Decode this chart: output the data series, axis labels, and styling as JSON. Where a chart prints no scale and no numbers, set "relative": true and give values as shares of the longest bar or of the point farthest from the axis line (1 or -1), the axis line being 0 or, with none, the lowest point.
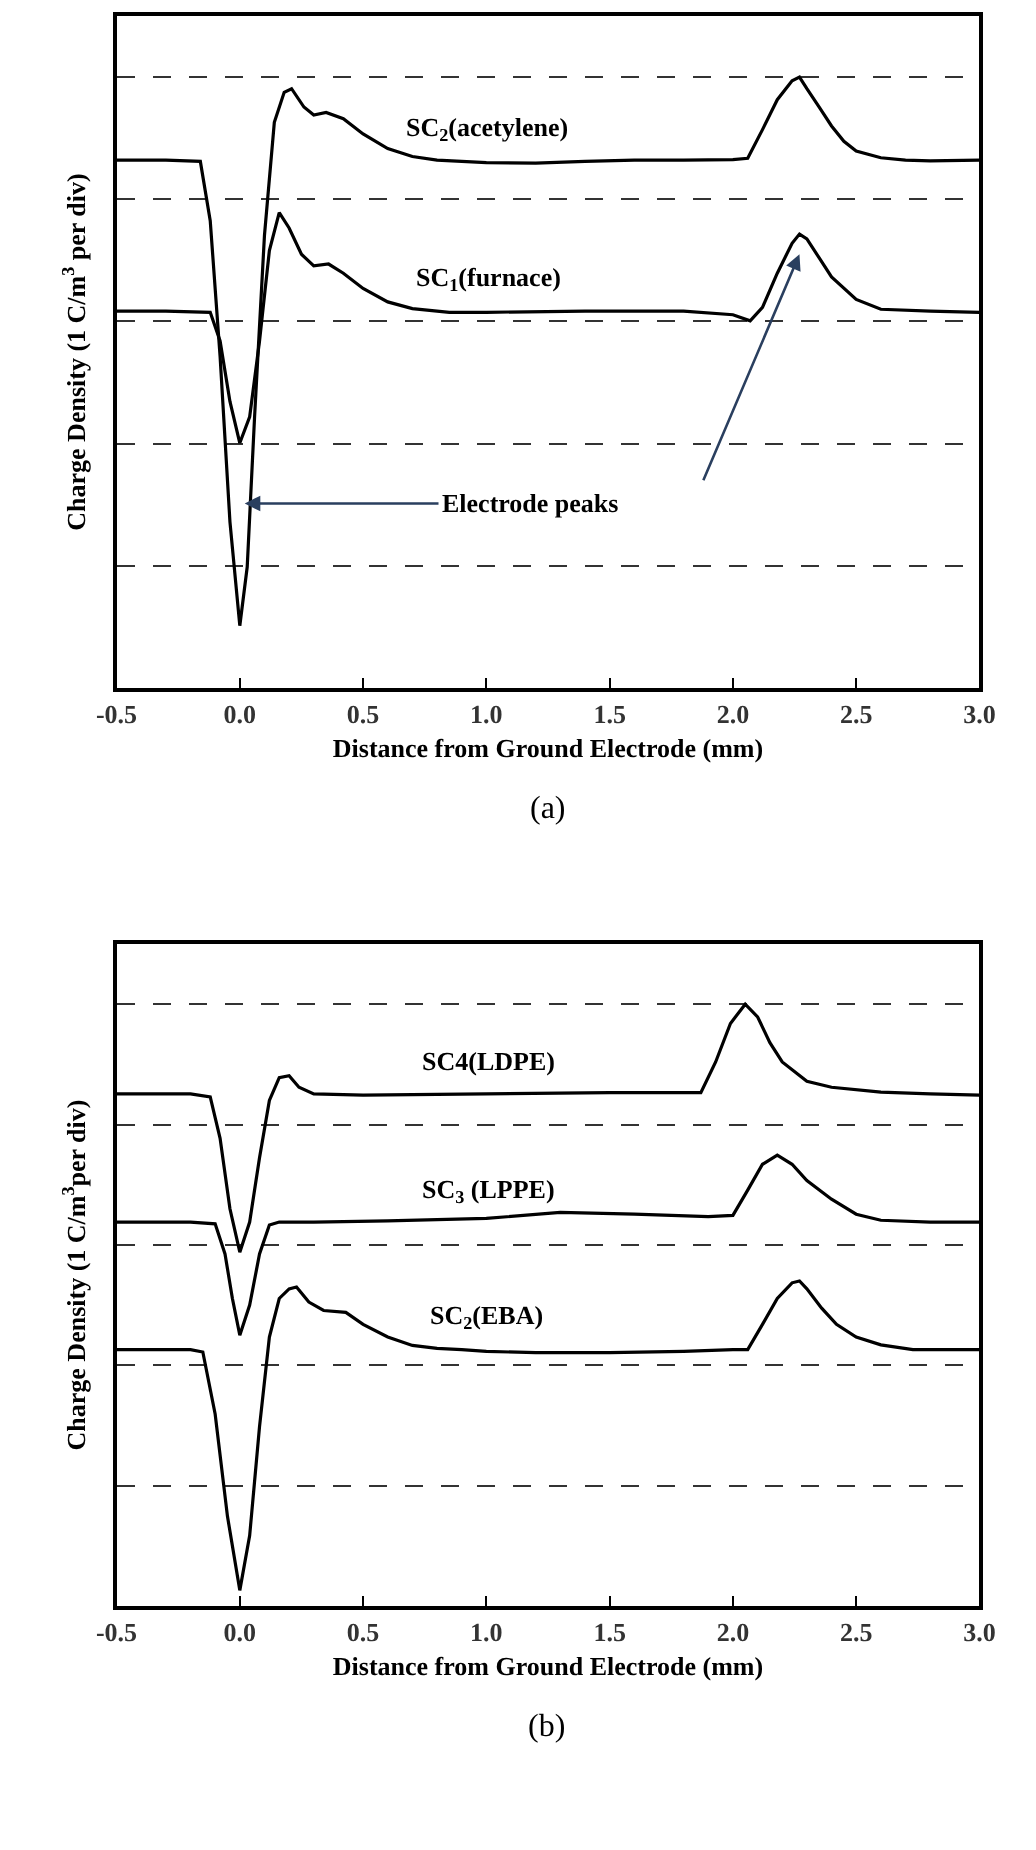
{
  "chart_data": [
    {
      "type": "line",
      "relative": true,
      "xlabel": "Distance from Ground Electrode (mm)",
      "ylabel": "Charge Density (1 C/m$^{3}$ per div)",
      "xlim": [
        -0.5,
        3.0
      ],
      "xticks": [
        {
          "value": -0.5,
          "label": "-0.5"
        },
        {
          "value": 0,
          "label": "0.0"
        },
        {
          "value": 0.5,
          "label": "0.5"
        },
        {
          "value": 1,
          "label": "1.0"
        },
        {
          "value": 1.5,
          "label": "1.5"
        },
        {
          "value": 2,
          "label": "2.0"
        },
        {
          "value": 2.5,
          "label": "2.5"
        },
        {
          "value": 3,
          "label": "3.0"
        }
      ],
      "tick_labels": "x",
      "grid": "y",
      "annotations": [
        {
          "text": "Electrode peaks",
          "x": 0.02,
          "y": 0.302
        },
        "(a)"
      ],
      "series": [
        {
          "name": "SC$_{2}$(acetylene)",
          "color": "#000000",
          "x": [
            -0.5,
            -0.3,
            -0.16,
            -0.12,
            -0.08,
            -0.04,
            0.0,
            0.03,
            0.06,
            0.1,
            0.14,
            0.18,
            0.21,
            0.26,
            0.3,
            0.35,
            0.42,
            0.5,
            0.6,
            0.7,
            0.8,
            0.9,
            1.0,
            1.2,
            1.4,
            1.6,
            1.8,
            2.0,
            2.06,
            2.12,
            2.18,
            2.24,
            2.27,
            2.3,
            2.35,
            2.4,
            2.45,
            2.5,
            2.6,
            2.7,
            2.8,
            3.0
          ],
          "values": [
            0.864,
            0.864,
            0.862,
            0.765,
            0.543,
            0.272,
            0.102,
            0.198,
            0.444,
            0.741,
            0.926,
            0.975,
            0.981,
            0.951,
            0.938,
            0.942,
            0.932,
            0.907,
            0.883,
            0.87,
            0.864,
            0.862,
            0.86,
            0.859,
            0.862,
            0.864,
            0.864,
            0.865,
            0.867,
            0.914,
            0.963,
            0.994,
            1,
            0.981,
            0.951,
            0.92,
            0.895,
            0.879,
            0.868,
            0.864,
            0.863,
            0.864
          ]
        },
        {
          "name": "SC$_{1}$(furnace)",
          "color": "#000000",
          "x": [
            -0.5,
            -0.3,
            -0.12,
            -0.08,
            -0.04,
            0.0,
            0.04,
            0.08,
            0.12,
            0.16,
            0.2,
            0.25,
            0.3,
            0.36,
            0.42,
            0.5,
            0.6,
            0.7,
            0.85,
            1.0,
            1.4,
            1.8,
            2.0,
            2.07,
            2.12,
            2.18,
            2.24,
            2.27,
            2.3,
            2.35,
            2.4,
            2.5,
            2.6,
            2.8,
            3.0
          ],
          "values": [
            0.617,
            0.617,
            0.615,
            0.568,
            0.469,
            0.401,
            0.444,
            0.568,
            0.716,
            0.778,
            0.753,
            0.71,
            0.691,
            0.694,
            0.679,
            0.654,
            0.632,
            0.621,
            0.615,
            0.615,
            0.617,
            0.617,
            0.611,
            0.601,
            0.623,
            0.679,
            0.728,
            0.743,
            0.735,
            0.704,
            0.673,
            0.636,
            0.62,
            0.617,
            0.615
          ]
        }
      ]
    },
    {
      "type": "line",
      "relative": true,
      "xlabel": "Distance from Ground Electrode (mm)",
      "ylabel": "Charge Density (1 C/m$^{3}$per div)",
      "xlim": [
        -0.5,
        3.0
      ],
      "xticks": [
        {
          "value": -0.5,
          "label": "-0.5"
        },
        {
          "value": 0,
          "label": "0.0"
        },
        {
          "value": 0.5,
          "label": "0.5"
        },
        {
          "value": 1,
          "label": "1.0"
        },
        {
          "value": 1.5,
          "label": "1.5"
        },
        {
          "value": 2,
          "label": "2.0"
        },
        {
          "value": 2.5,
          "label": "2.5"
        },
        {
          "value": 3,
          "label": "3.0"
        }
      ],
      "tick_labels": "x",
      "grid": "y",
      "annotations": [
        "(b)"
      ],
      "series": [
        {
          "name": "SC4(LDPE)",
          "color": "#000000",
          "x": [
            -0.5,
            -0.2,
            -0.12,
            -0.08,
            -0.04,
            0.0,
            0.04,
            0.08,
            0.12,
            0.16,
            0.2,
            0.24,
            0.3,
            0.5,
            1.0,
            1.5,
            1.87,
            1.93,
            1.99,
            2.05,
            2.1,
            2.15,
            2.2,
            2.3,
            2.4,
            2.6,
            2.8,
            3.0
          ],
          "values": [
            0.851,
            0.851,
            0.846,
            0.777,
            0.66,
            0.588,
            0.638,
            0.745,
            0.84,
            0.878,
            0.881,
            0.862,
            0.851,
            0.849,
            0.851,
            0.853,
            0.853,
            0.904,
            0.968,
            1,
            0.979,
            0.936,
            0.904,
            0.872,
            0.862,
            0.854,
            0.851,
            0.849
          ]
        },
        {
          "name": "SC$_{3}$ (LPPE)",
          "color": "#000000",
          "x": [
            -0.5,
            -0.2,
            -0.1,
            -0.06,
            -0.03,
            0.0,
            0.04,
            0.08,
            0.12,
            0.16,
            0.3,
            0.6,
            1.0,
            1.3,
            1.6,
            1.9,
            2.0,
            2.06,
            2.12,
            2.18,
            2.24,
            2.3,
            2.4,
            2.5,
            2.6,
            2.8,
            3.0
          ],
          "values": [
            0.638,
            0.638,
            0.635,
            0.585,
            0.511,
            0.45,
            0.5,
            0.585,
            0.633,
            0.638,
            0.638,
            0.64,
            0.644,
            0.654,
            0.651,
            0.647,
            0.649,
            0.691,
            0.734,
            0.749,
            0.734,
            0.707,
            0.676,
            0.651,
            0.641,
            0.638,
            0.638
          ]
        },
        {
          "name": "SC$_{2}$(EBA)",
          "color": "#000000",
          "x": [
            -0.5,
            -0.2,
            -0.15,
            -0.1,
            -0.05,
            0.0,
            0.04,
            0.08,
            0.12,
            0.16,
            0.2,
            0.23,
            0.28,
            0.34,
            0.43,
            0.5,
            0.6,
            0.7,
            0.8,
            0.9,
            1.0,
            1.2,
            1.5,
            1.8,
            2.0,
            2.06,
            2.12,
            2.18,
            2.24,
            2.27,
            2.3,
            2.36,
            2.42,
            2.5,
            2.6,
            2.73,
            2.9,
            3.0
          ],
          "values": [
            0.426,
            0.426,
            0.422,
            0.319,
            0.149,
            0.026,
            0.117,
            0.298,
            0.447,
            0.511,
            0.527,
            0.53,
            0.505,
            0.491,
            0.488,
            0.468,
            0.447,
            0.433,
            0.428,
            0.426,
            0.423,
            0.421,
            0.421,
            0.423,
            0.426,
            0.426,
            0.468,
            0.511,
            0.537,
            0.54,
            0.527,
            0.495,
            0.468,
            0.447,
            0.434,
            0.426,
            0.426,
            0.426
          ]
        }
      ]
    }
  ]
}
